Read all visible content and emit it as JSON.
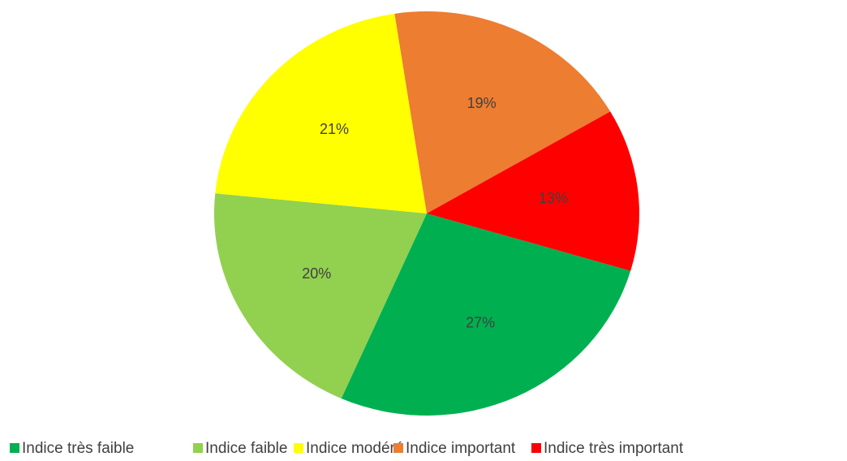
{
  "chart_data": {
    "type": "pie",
    "categories": [
      "Indice très faible",
      "Indice faible",
      "Indice modéré",
      "Indice important",
      "Indice très important"
    ],
    "values": [
      27,
      20,
      21,
      19,
      13
    ],
    "value_labels": [
      "27%",
      "20%",
      "21%",
      "19%",
      "13%"
    ],
    "colors": [
      "#00b050",
      "#92d050",
      "#ffff00",
      "#ed7d31",
      "#ff0000"
    ],
    "legend": "bottom"
  }
}
